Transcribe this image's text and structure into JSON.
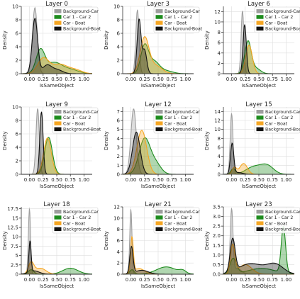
{
  "figure": {
    "series_order": [
      "Background-Car",
      "Car 1 - Car 2",
      "Car - Boat",
      "Background-Boat"
    ],
    "colors": {
      "Background-Car": "#9e9e9e",
      "Car 1 - Car 2": "#1e8c1e",
      "Car - Boat": "#f5a623",
      "Background-Boat": "#111111"
    }
  },
  "chart_data": [
    {
      "type": "area",
      "title": "Layer 0",
      "xlabel": "IsSameObject",
      "ylabel": "Density",
      "xlim": [
        -0.15,
        1.15
      ],
      "ylim": [
        0,
        10
      ],
      "yticks": [
        0,
        2,
        4,
        6,
        8,
        10
      ],
      "xticks": [
        0.0,
        0.25,
        0.5,
        0.75,
        1.0
      ],
      "legend": "top-right",
      "series": [
        {
          "name": "Background-Car",
          "peaks": [
            [
              0.1,
              9.8,
              0.045
            ]
          ]
        },
        {
          "name": "Car 1 - Car 2",
          "peaks": [
            [
              0.2,
              3.4,
              0.08
            ],
            [
              0.45,
              1.6,
              0.14
            ],
            [
              0.75,
              0.6,
              0.15
            ]
          ]
        },
        {
          "name": "Car - Boat",
          "peaks": [
            [
              0.25,
              2.2,
              0.1
            ],
            [
              0.55,
              1.4,
              0.15
            ],
            [
              0.85,
              0.5,
              0.12
            ]
          ]
        },
        {
          "name": "Background-Boat",
          "peaks": [
            [
              0.1,
              8.2,
              0.05
            ],
            [
              0.32,
              1.2,
              0.08
            ],
            [
              0.5,
              0.6,
              0.1
            ]
          ]
        }
      ]
    },
    {
      "type": "area",
      "title": "Layer 3",
      "xlabel": "IsSameObject",
      "ylabel": "Density",
      "xlim": [
        -0.15,
        1.15
      ],
      "ylim": [
        0,
        10
      ],
      "yticks": [
        0,
        2,
        4,
        6,
        8,
        10
      ],
      "xticks": [
        0.0,
        0.25,
        0.5,
        0.75,
        1.0
      ],
      "legend": "top-right",
      "series": [
        {
          "name": "Background-Car",
          "peaks": [
            [
              0.12,
              9.5,
              0.03
            ]
          ]
        },
        {
          "name": "Car 1 - Car 2",
          "peaks": [
            [
              0.25,
              4.0,
              0.07
            ],
            [
              0.42,
              1.8,
              0.1
            ],
            [
              0.65,
              0.4,
              0.12
            ]
          ]
        },
        {
          "name": "Car - Boat",
          "peaks": [
            [
              0.25,
              5.2,
              0.08
            ],
            [
              0.45,
              1.2,
              0.12
            ]
          ]
        },
        {
          "name": "Background-Boat",
          "peaks": [
            [
              0.15,
              8.0,
              0.035
            ],
            [
              0.25,
              3.5,
              0.04
            ]
          ]
        }
      ]
    },
    {
      "type": "area",
      "title": "Layer 6",
      "xlabel": "IsSameObject",
      "ylabel": "Density",
      "xlim": [
        -0.15,
        1.15
      ],
      "ylim": [
        0,
        13
      ],
      "yticks": [
        0,
        2,
        4,
        6,
        8,
        10,
        12
      ],
      "xticks": [
        0.0,
        0.25,
        0.5,
        0.75,
        1.0
      ],
      "legend": "top-right",
      "series": [
        {
          "name": "Background-Car",
          "peaks": [
            [
              0.2,
              12.2,
              0.025
            ]
          ]
        },
        {
          "name": "Car 1 - Car 2",
          "peaks": [
            [
              0.3,
              6.2,
              0.06
            ],
            [
              0.45,
              1.0,
              0.08
            ]
          ]
        },
        {
          "name": "Car - Boat",
          "peaks": [
            [
              0.32,
              5.5,
              0.06
            ]
          ]
        },
        {
          "name": "Background-Boat",
          "peaks": [
            [
              0.24,
              9.5,
              0.03
            ]
          ]
        }
      ]
    },
    {
      "type": "area",
      "title": "Layer 9",
      "xlabel": "IsSameObject",
      "ylabel": "Density",
      "xlim": [
        -0.15,
        1.15
      ],
      "ylim": [
        0,
        10
      ],
      "yticks": [
        0,
        2,
        4,
        6,
        8,
        10
      ],
      "xticks": [
        0.0,
        0.25,
        0.5,
        0.75,
        1.0
      ],
      "legend": "top-right",
      "series": [
        {
          "name": "Background-Car",
          "peaks": [
            [
              0.15,
              9.8,
              0.03
            ]
          ]
        },
        {
          "name": "Car 1 - Car 2",
          "peaks": [
            [
              0.35,
              5.5,
              0.07
            ]
          ]
        },
        {
          "name": "Car - Boat",
          "peaks": [
            [
              0.33,
              5.4,
              0.07
            ]
          ]
        },
        {
          "name": "Background-Boat",
          "peaks": [
            [
              0.22,
              9.3,
              0.03
            ]
          ]
        }
      ]
    },
    {
      "type": "area",
      "title": "Layer 12",
      "xlabel": "IsSameObject",
      "ylabel": "Density",
      "xlim": [
        -0.15,
        1.15
      ],
      "ylim": [
        0,
        7.5
      ],
      "yticks": [
        0,
        1,
        2,
        3,
        4,
        5,
        6,
        7
      ],
      "xticks": [
        0.0,
        0.25,
        0.5,
        0.75,
        1.0
      ],
      "legend": "top-right",
      "series": [
        {
          "name": "Background-Car",
          "peaks": [
            [
              0.05,
              7.3,
              0.05
            ]
          ]
        },
        {
          "name": "Car 1 - Car 2",
          "peaks": [
            [
              0.25,
              3.9,
              0.1
            ],
            [
              0.45,
              1.2,
              0.1
            ]
          ]
        },
        {
          "name": "Car - Boat",
          "peaks": [
            [
              0.2,
              4.9,
              0.09
            ]
          ]
        },
        {
          "name": "Background-Boat",
          "peaks": [
            [
              0.1,
              4.7,
              0.07
            ]
          ]
        }
      ]
    },
    {
      "type": "area",
      "title": "Layer 15",
      "xlabel": "IsSameObject",
      "ylabel": "Density",
      "xlim": [
        -0.15,
        1.15
      ],
      "ylim": [
        0,
        15
      ],
      "yticks": [
        0,
        2,
        4,
        6,
        8,
        10,
        12,
        14
      ],
      "xticks": [
        0.0,
        0.25,
        0.5,
        0.75,
        1.0
      ],
      "legend": "top-right",
      "series": [
        {
          "name": "Background-Car",
          "peaks": [
            [
              0.0,
              13.6,
              0.025
            ]
          ]
        },
        {
          "name": "Car 1 - Car 2",
          "peaks": [
            [
              0.03,
              1.2,
              0.04
            ],
            [
              0.4,
              1.6,
              0.14
            ],
            [
              0.65,
              1.9,
              0.12
            ]
          ]
        },
        {
          "name": "Car - Boat",
          "peaks": [
            [
              0.05,
              1.5,
              0.04
            ],
            [
              0.22,
              2.4,
              0.07
            ]
          ]
        },
        {
          "name": "Background-Boat",
          "peaks": [
            [
              0.01,
              6.8,
              0.03
            ],
            [
              0.12,
              0.4,
              0.08
            ]
          ]
        }
      ]
    },
    {
      "type": "area",
      "title": "Layer 18",
      "xlabel": "IsSameObject",
      "ylabel": "Density",
      "xlim": [
        -0.15,
        1.15
      ],
      "ylim": [
        0,
        18
      ],
      "yticks": [
        0.0,
        2.5,
        5.0,
        7.5,
        10.0,
        12.5,
        15.0,
        17.5
      ],
      "xticks": [
        0.0,
        0.25,
        0.5,
        0.75,
        1.0
      ],
      "legend": "top-right",
      "series": [
        {
          "name": "Background-Car",
          "peaks": [
            [
              0.0,
              17.6,
              0.02
            ]
          ]
        },
        {
          "name": "Car 1 - Car 2",
          "peaks": [
            [
              0.03,
              1.2,
              0.05
            ],
            [
              0.75,
              1.6,
              0.14
            ]
          ]
        },
        {
          "name": "Car - Boat",
          "peaks": [
            [
              0.03,
              3.0,
              0.05
            ],
            [
              0.2,
              1.6,
              0.1
            ]
          ]
        },
        {
          "name": "Background-Boat",
          "peaks": [
            [
              0.01,
              8.3,
              0.02
            ],
            [
              0.08,
              0.9,
              0.1
            ]
          ]
        }
      ]
    },
    {
      "type": "area",
      "title": "Layer 21",
      "xlabel": "IsSameObject",
      "ylabel": "Density",
      "xlim": [
        -0.15,
        1.15
      ],
      "ylim": [
        0,
        12
      ],
      "yticks": [
        0,
        2,
        4,
        6,
        8,
        10,
        12
      ],
      "xticks": [
        0.0,
        0.25,
        0.5,
        0.75,
        1.0
      ],
      "legend": "top-right",
      "series": [
        {
          "name": "Background-Car",
          "peaks": [
            [
              0.0,
              11.6,
              0.02
            ]
          ]
        },
        {
          "name": "Car 1 - Car 2",
          "peaks": [
            [
              0.02,
              0.8,
              0.04
            ],
            [
              0.65,
              1.3,
              0.18
            ],
            [
              0.95,
              0.5,
              0.06
            ]
          ]
        },
        {
          "name": "Car - Boat",
          "peaks": [
            [
              0.02,
              6.3,
              0.025
            ],
            [
              0.15,
              1.0,
              0.1
            ]
          ]
        },
        {
          "name": "Background-Boat",
          "peaks": [
            [
              0.01,
              4.8,
              0.03
            ],
            [
              0.2,
              0.7,
              0.12
            ]
          ]
        }
      ]
    },
    {
      "type": "area",
      "title": "Layer 23",
      "xlabel": "IsSameObject",
      "ylabel": "Density",
      "xlim": [
        -0.15,
        1.15
      ],
      "ylim": [
        0,
        3.5
      ],
      "yticks": [
        0.0,
        0.5,
        1.0,
        1.5,
        2.0,
        2.5,
        3.0,
        3.5
      ],
      "xticks": [
        0.0,
        0.25,
        0.5,
        0.75,
        1.0
      ],
      "legend": "top-right",
      "series": [
        {
          "name": "Background-Car",
          "peaks": [
            [
              0.0,
              3.3,
              0.025
            ],
            [
              0.1,
              0.3,
              0.08
            ]
          ]
        },
        {
          "name": "Car 1 - Car 2",
          "peaks": [
            [
              0.03,
              0.8,
              0.06
            ],
            [
              0.55,
              0.3,
              0.25
            ],
            [
              0.95,
              2.4,
              0.04
            ]
          ]
        },
        {
          "name": "Car - Boat",
          "peaks": [
            [
              0.02,
              1.5,
              0.04
            ],
            [
              0.25,
              0.5,
              0.12
            ]
          ]
        },
        {
          "name": "Background-Boat",
          "peaks": [
            [
              0.02,
              1.7,
              0.045
            ],
            [
              0.35,
              0.55,
              0.22
            ],
            [
              0.8,
              0.5,
              0.15
            ]
          ]
        }
      ]
    }
  ]
}
